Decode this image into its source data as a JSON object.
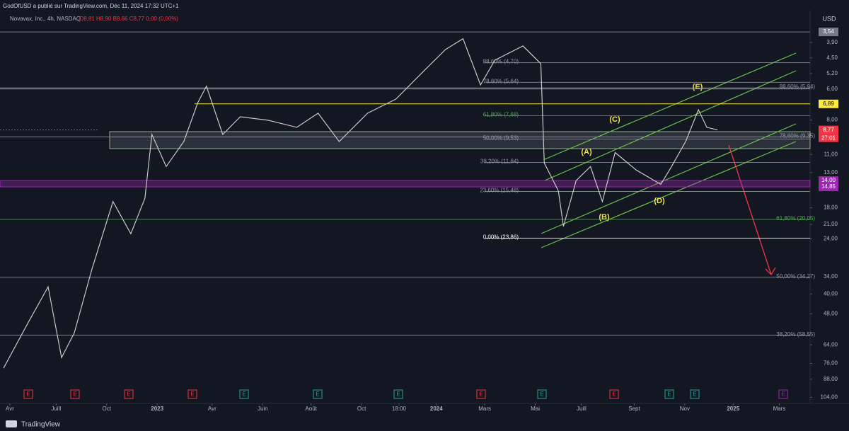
{
  "header": {
    "publisher": "GodOfUSD a publié sur TradingView.com, Déc 11, 2024 17:32 UTC+1",
    "symbol": "Novavax, Inc., 4h, NASDAQ",
    "ohlc": "O8,81 H8,90 B8,66 C8,77 0,00 (0,00%)"
  },
  "currency": "USD",
  "countdown": "27:01",
  "brand": "TradingView",
  "event_marker": "E",
  "wave_labels": [
    "(A)",
    "(B)",
    "(C)",
    "(D)",
    "(E)"
  ],
  "chart_data": {
    "type": "line",
    "log_scale": true,
    "inverted_scale": true,
    "color": "#c8c8c8",
    "x": [
      -0.29,
      0.84,
      1.74,
      2.35,
      2.93,
      3.73,
      4.69,
      5.5,
      6.14,
      6.46,
      7.11,
      7.91,
      8.55,
      8.94,
      9.68,
      10.48,
      11.77,
      13.05,
      14.02,
      14.98,
      16.27,
      17.56,
      18.84,
      19.81,
      20.61,
      21.41,
      22.06,
      23.34,
      24.15,
      24.31,
      24.95,
      25.18,
      25.76,
      26.41,
      26.95,
      27.53,
      28.49,
      29.61,
      30.1,
      30.74,
      31.32,
      31.7,
      32.19
    ],
    "values": [
      79.4,
      51.9,
      37.4,
      72.0,
      57.3,
      31.8,
      17.0,
      22.9,
      16.5,
      9.14,
      12.3,
      9.76,
      6.81,
      5.85,
      9.14,
      7.76,
      8.02,
      8.56,
      7.51,
      9.76,
      7.51,
      6.59,
      5.07,
      4.17,
      3.77,
      5.78,
      4.6,
      4.03,
      4.75,
      11.9,
      15.4,
      21.4,
      14.0,
      12.3,
      17.0,
      10.8,
      12.7,
      14.5,
      12.3,
      9.76,
      7.27,
      8.56,
      8.77
    ],
    "xlim": [
      -0.45,
      36.4
    ],
    "ylim": [
      3.38,
      110
    ],
    "xticks": [
      {
        "value": 0,
        "label": "Avr"
      },
      {
        "value": 2.1,
        "label": "Juill"
      },
      {
        "value": 4.4,
        "label": "Oct"
      },
      {
        "value": 6.7,
        "label": "2023"
      },
      {
        "value": 9.2,
        "label": "Avr"
      },
      {
        "value": 11.5,
        "label": "Juin"
      },
      {
        "value": 13.7,
        "label": "Août"
      },
      {
        "value": 16.0,
        "label": "Oct"
      },
      {
        "value": 17.7,
        "label": "18:00"
      },
      {
        "value": 19.4,
        "label": "2024"
      },
      {
        "value": 21.6,
        "label": "Mars"
      },
      {
        "value": 23.9,
        "label": "Mai"
      },
      {
        "value": 26.0,
        "label": "Juill"
      },
      {
        "value": 28.4,
        "label": "Sept"
      },
      {
        "value": 30.7,
        "label": "Nov"
      },
      {
        "value": 32.9,
        "label": "2025"
      },
      {
        "value": 35.0,
        "label": "Mars"
      }
    ],
    "yticks": [
      {
        "value": 3.9,
        "label": "3,90"
      },
      {
        "value": 4.5,
        "label": "4,50"
      },
      {
        "value": 5.2,
        "label": "5,20"
      },
      {
        "value": 6,
        "label": "6,00"
      },
      {
        "value": 8,
        "label": "8,00"
      },
      {
        "value": 11,
        "label": "11,00"
      },
      {
        "value": 13,
        "label": "13,00"
      },
      {
        "value": 18,
        "label": "18,00"
      },
      {
        "value": 21,
        "label": "21,00"
      },
      {
        "value": 24,
        "label": "24,00"
      },
      {
        "value": 34,
        "label": "34,00"
      },
      {
        "value": 40,
        "label": "40,00"
      },
      {
        "value": 48,
        "label": "48,00"
      },
      {
        "value": 64,
        "label": "64,00"
      },
      {
        "value": 76,
        "label": "76,00"
      },
      {
        "value": 88,
        "label": "88,00"
      },
      {
        "value": 104,
        "label": "104,00"
      }
    ],
    "fib_left": [
      {
        "value": 4.7,
        "label": "88,60% (4,70)",
        "color": "#9598a1"
      },
      {
        "value": 5.64,
        "label": "78,60% (5,64)",
        "color": "#9598a1"
      },
      {
        "value": 7.68,
        "label": "61,80% (7,68)",
        "color": "#4caf50"
      },
      {
        "value": 9.53,
        "label": "50,00% (9,53)",
        "color": "#9598a1"
      },
      {
        "value": 11.84,
        "label": "38,20% (11,84)",
        "color": "#9598a1"
      },
      {
        "value": 15.48,
        "label": "23,60% (15,48)",
        "color": "#9598a1"
      },
      {
        "value": 23.86,
        "label": "0,00% (23,86)",
        "color": "#ffffff"
      }
    ],
    "fib_right": [
      {
        "value": 5.94,
        "label": "88,60% (5,94)",
        "color": "#9598a1"
      },
      {
        "value": 9.35,
        "label": "78,60% (9,35)",
        "color": "#9598a1"
      },
      {
        "value": 20.05,
        "label": "61,80% (20,05)",
        "color": "#4caf50"
      },
      {
        "value": 34.27,
        "label": "50,00% (34,27)",
        "color": "#9598a1"
      },
      {
        "value": 58.55,
        "label": "38,20% (58,55)",
        "color": "#9598a1"
      }
    ],
    "price_tags": [
      {
        "value": 3.54,
        "label": "3,54",
        "color": "#787b86"
      },
      {
        "value": 6.89,
        "label": "6,89",
        "color": "#ffeb3b"
      },
      {
        "value": 8.77,
        "label": "8,77",
        "color": "#f23645"
      },
      {
        "value": 14,
        "label": "14,00",
        "color": "#9c27b0"
      },
      {
        "value": 14.85,
        "label": "14,85",
        "color": "#9c27b0"
      }
    ]
  }
}
